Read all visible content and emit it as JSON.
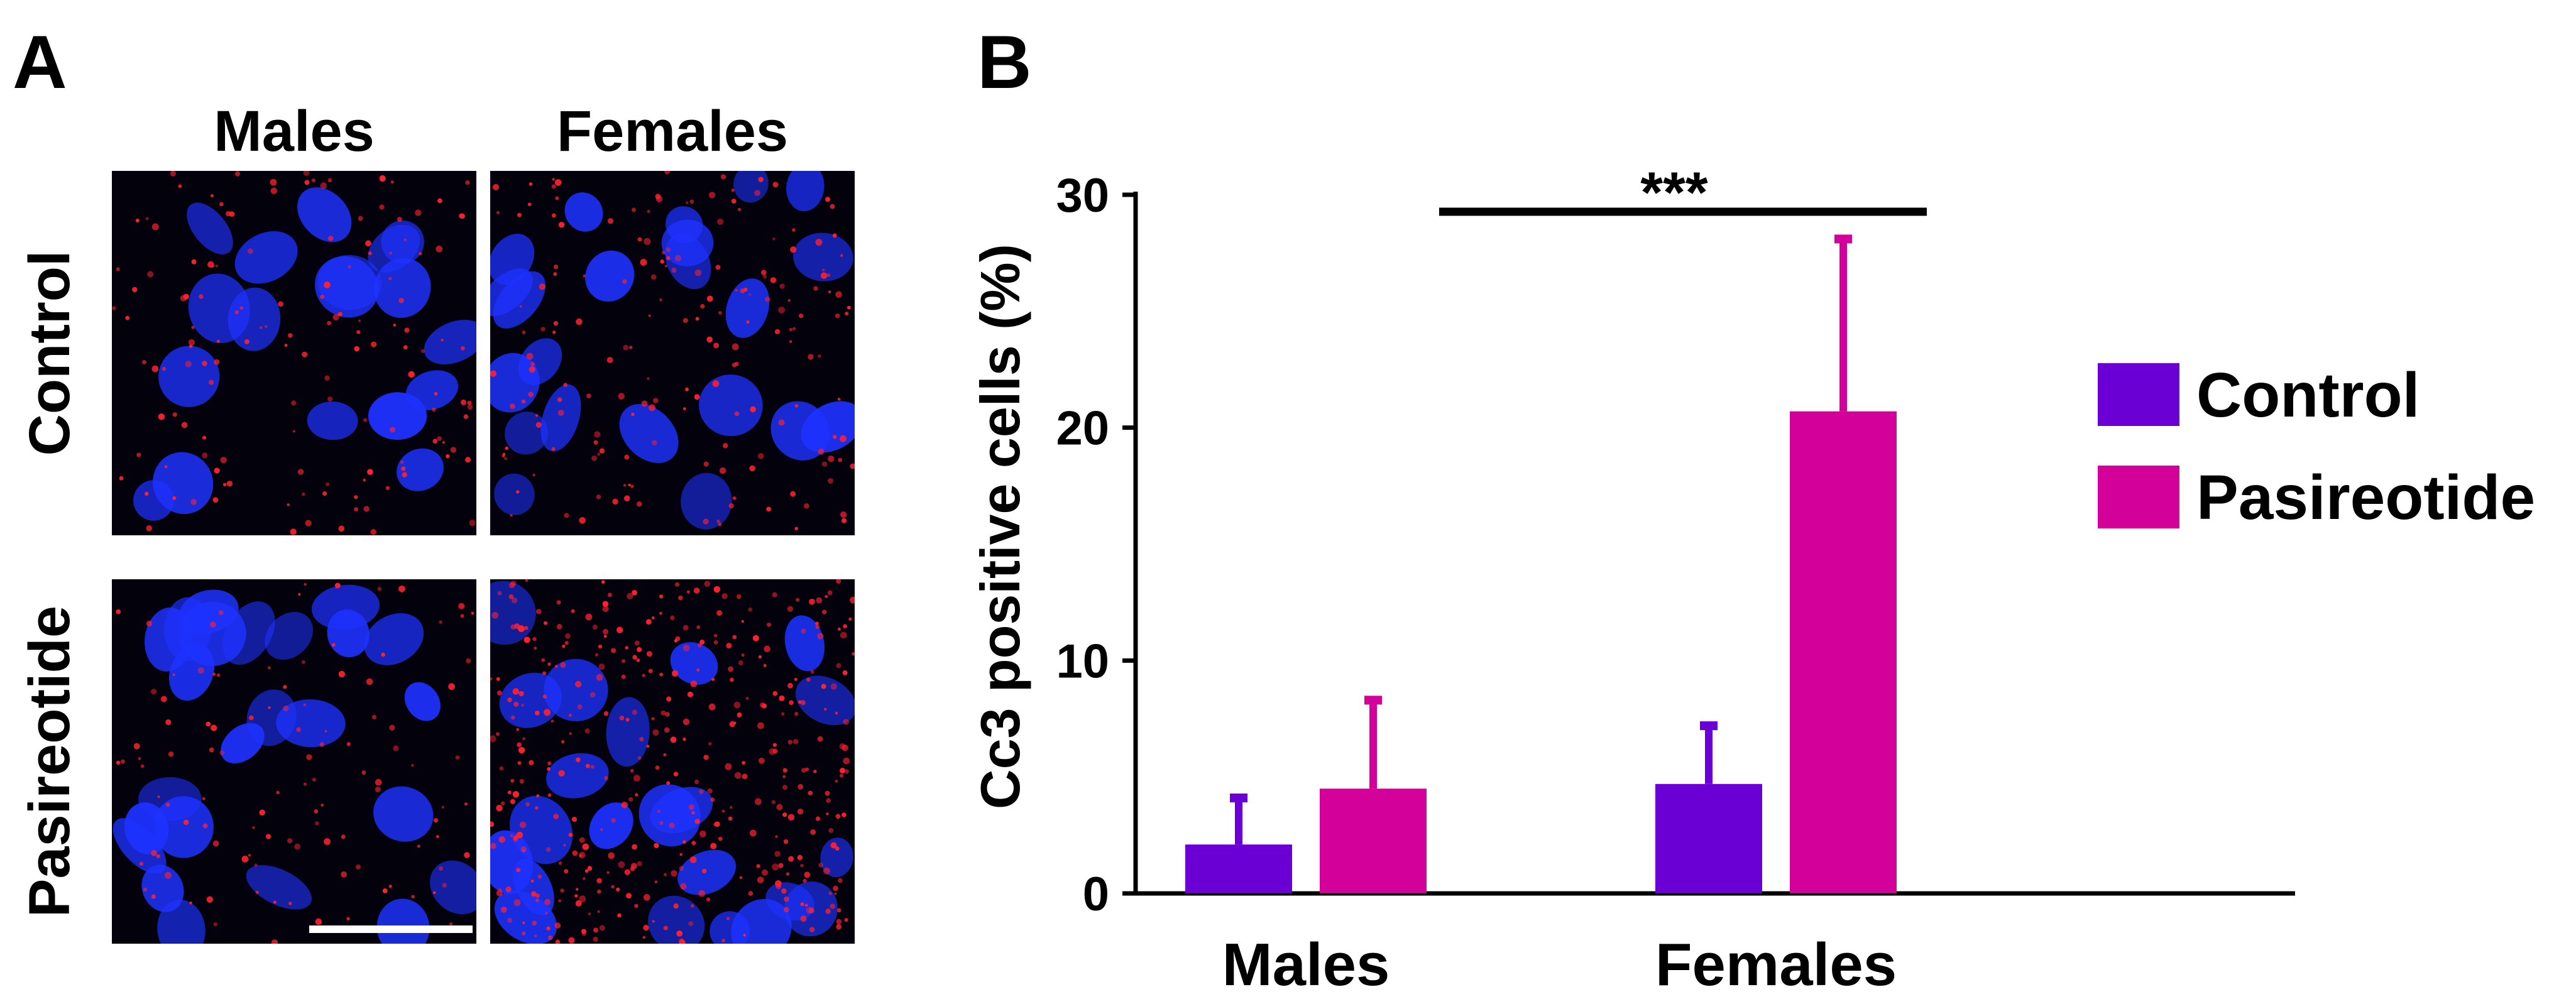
{
  "panel_a": {
    "label": "A",
    "columns": [
      "Males",
      "Females"
    ],
    "rows": [
      "Control",
      "Pasireotide"
    ],
    "nucleus_color": "#1e32ff",
    "signal_color": "#ff2030",
    "background_color": "#03020c",
    "scale_bar_color": "#ffffff"
  },
  "panel_b": {
    "label": "B"
  },
  "chart_data": {
    "type": "bar",
    "categories": [
      "Males",
      "Females"
    ],
    "series": [
      {
        "name": "Control",
        "color": "#6a00d4",
        "values": [
          2.1,
          4.7
        ],
        "errors": [
          2.0,
          2.5
        ]
      },
      {
        "name": "Pasireotide",
        "color": "#d4009a",
        "values": [
          4.5,
          20.7
        ],
        "errors": [
          3.8,
          7.4
        ]
      }
    ],
    "title": "",
    "xlabel": "",
    "ylabel": "Cc3 positive cells (%)",
    "ylim": [
      0,
      30
    ],
    "yticks": [
      0,
      10,
      20,
      30
    ],
    "grid": false,
    "legend_position": "right",
    "significance": {
      "from": "Males",
      "to": "Females",
      "label": "***"
    }
  }
}
